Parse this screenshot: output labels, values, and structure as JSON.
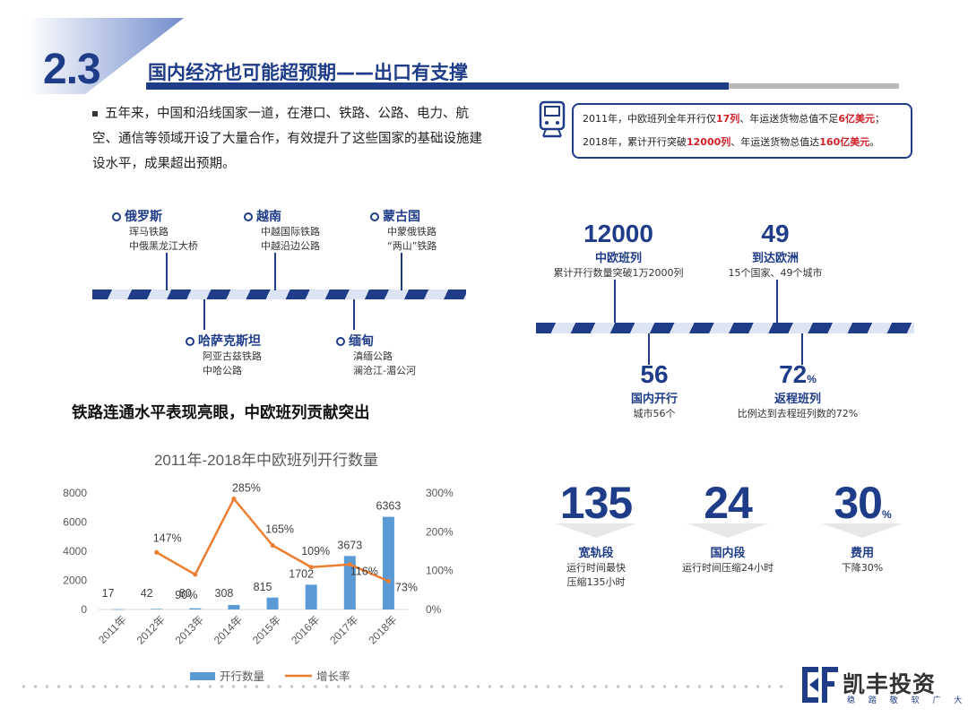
{
  "header": {
    "section_number": "2.3",
    "title": "国内经济也可能超预期——出口有支撑"
  },
  "bullet": "五年来，中国和沿线国家一道，在港口、铁路、公路、电力、航空、通信等领域开设了大量合作，有效提升了这些国家的基础设施建设水平，成果超出预期。",
  "timeline_top": [
    {
      "country": "俄罗斯",
      "lines": [
        "珲马铁路",
        "中俄黑龙江大桥"
      ]
    },
    {
      "country": "越南",
      "lines": [
        "中越国际铁路",
        "中越沿边公路"
      ]
    },
    {
      "country": "蒙古国",
      "lines": [
        "中蒙俄铁路",
        "“两山”铁路"
      ]
    }
  ],
  "timeline_bottom": [
    {
      "country": "哈萨克斯坦",
      "lines": [
        "阿亚古兹铁路",
        "中哈公路"
      ]
    },
    {
      "country": "缅甸",
      "lines": [
        "滇缅公路",
        "澜沧江-湄公河"
      ]
    }
  ],
  "subheading": "铁路连通水平表现亮眼，中欧班列贡献突出",
  "chart_data": {
    "type": "bar+line",
    "title": "2011年-2018年中欧班列开行数量",
    "categories": [
      "2011年",
      "2012年",
      "2013年",
      "2014年",
      "2015年",
      "2016年",
      "2017年",
      "2018年"
    ],
    "series": [
      {
        "name": "开行数量",
        "type": "bar",
        "axis": "left",
        "color": "#5b9bd5",
        "values": [
          17,
          42,
          80,
          308,
          815,
          1702,
          3673,
          6363
        ]
      },
      {
        "name": "增长率",
        "type": "line",
        "axis": "right",
        "color": "#ed7d31",
        "values": [
          null,
          147,
          90,
          285,
          165,
          109,
          116,
          73
        ],
        "labels": [
          "",
          "147%",
          "90%",
          "285%",
          "165%",
          "109%",
          "116%",
          "73%"
        ]
      }
    ],
    "y_left": {
      "min": 0,
      "max": 8000,
      "ticks": [
        "0",
        "2000",
        "4000",
        "6000",
        "8000"
      ]
    },
    "y_right": {
      "min": 0,
      "max": 300,
      "ticks": [
        "0%",
        "100%",
        "200%",
        "300%"
      ]
    },
    "legend_position": "bottom",
    "grid": false
  },
  "info_box": {
    "line1_prefix": "2011年，中欧班列全年开行仅",
    "line1_hl1": "17列",
    "line1_mid": "、年运送货物总值不足",
    "line1_hl2": "6亿美元",
    "line1_suffix": "；",
    "line2_prefix": "2018年，累计开行突破",
    "line2_hl1": "12000列",
    "line2_mid": "、年运送货物总值达",
    "line2_hl2": "160亿美元",
    "line2_suffix": "。"
  },
  "stats_top": [
    {
      "number": "12000",
      "label": "中欧班列",
      "desc": "累计开行数量突破1万2000列"
    },
    {
      "number": "49",
      "label": "到达欧洲",
      "desc": "15个国家、49个城市"
    }
  ],
  "stats_bottom": [
    {
      "number": "56",
      "suffix": "",
      "label": "国内开行",
      "desc": "城市56个"
    },
    {
      "number": "72",
      "suffix": "%",
      "label": "返程班列",
      "desc": "比例达到去程班列数的72%"
    }
  ],
  "highlights": [
    {
      "number": "135",
      "suffix": "",
      "label": "宽轨段",
      "desc1": "运行时间最快",
      "desc2": "压缩135小时"
    },
    {
      "number": "24",
      "suffix": "",
      "label": "国内段",
      "desc1": "运行时间压缩24小时",
      "desc2": ""
    },
    {
      "number": "30",
      "suffix": "%",
      "label": "费用",
      "desc1": "下降30%",
      "desc2": ""
    }
  ],
  "logo": {
    "name": "凯丰投资",
    "tagline": "稳 踏 敬 软 广 大"
  },
  "colors": {
    "brand": "#1f3c88",
    "accent_red": "#d0222a",
    "bar": "#5b9bd5",
    "line": "#ed7d31"
  }
}
